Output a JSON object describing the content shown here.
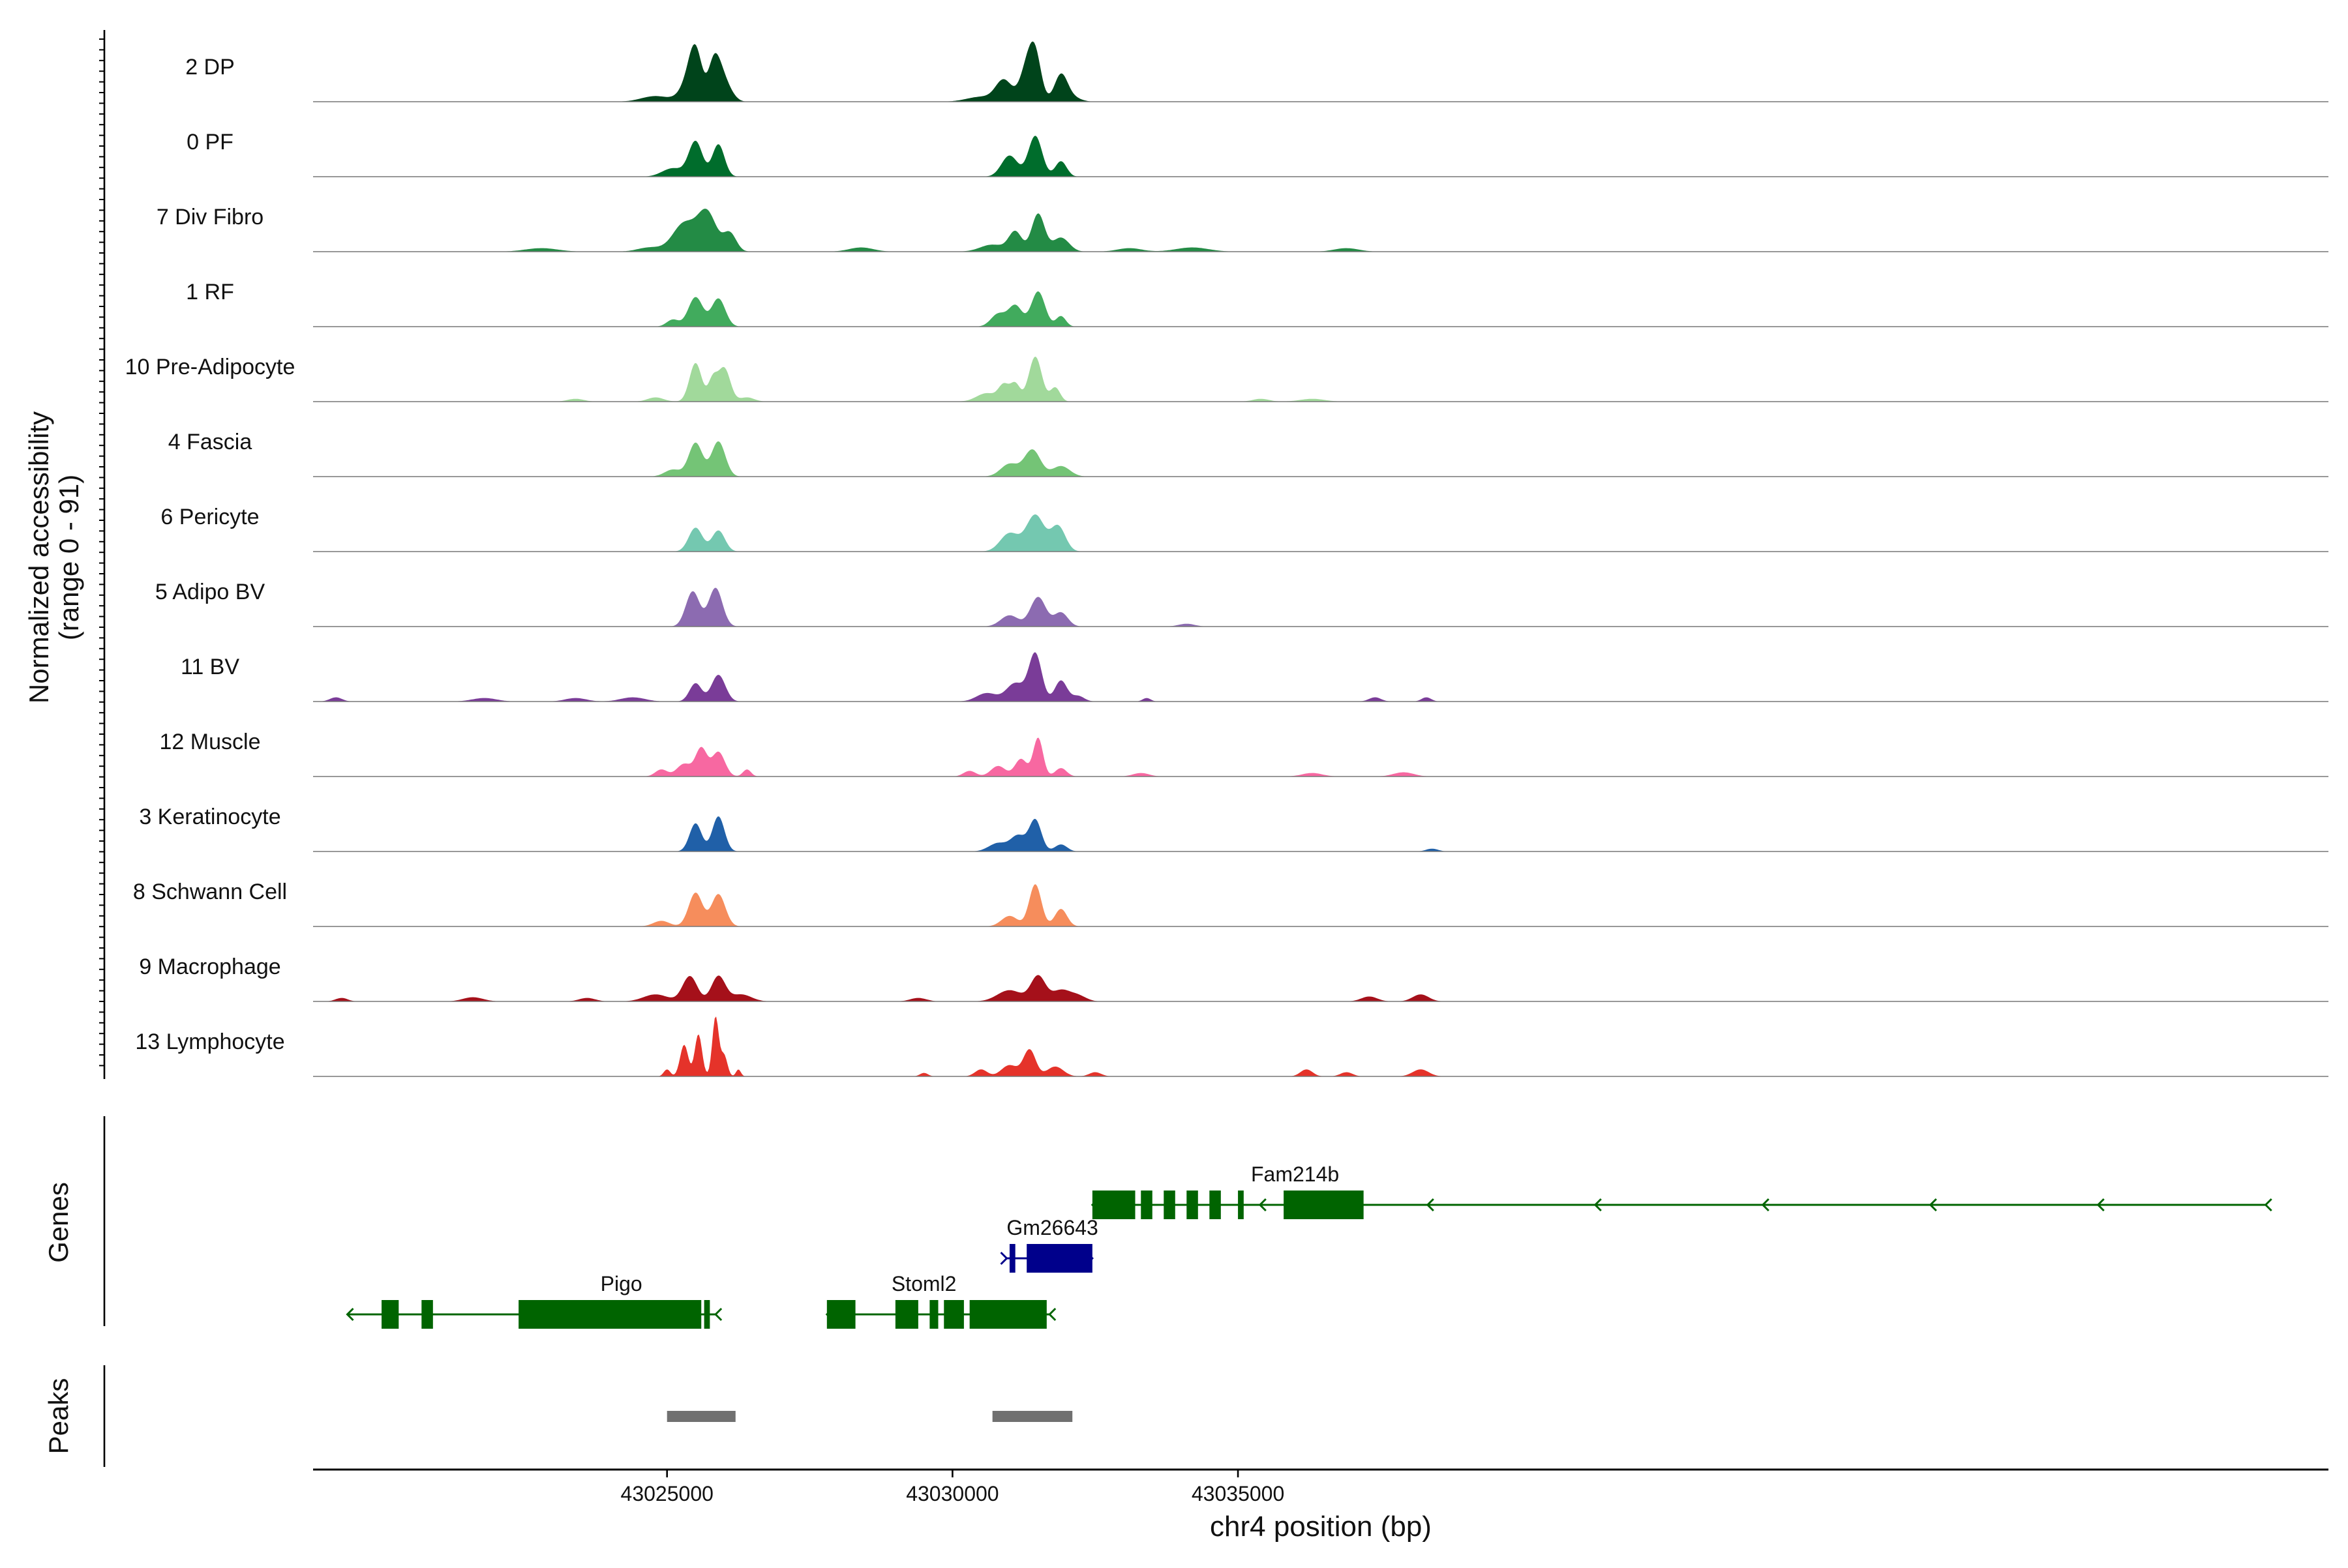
{
  "chart_data": {
    "type": "area",
    "title": "",
    "ylabel_line1": "Normalized accessibility",
    "ylabel_line2": "(range 0 - 91)",
    "ylim": [
      0,
      91
    ],
    "xlabel": "chr4 position (bp)",
    "xlim": [
      43018800,
      43054100
    ],
    "x_ticks": [
      {
        "value": 43025000,
        "label": "43025000"
      },
      {
        "value": 43030000,
        "label": "43030000"
      },
      {
        "value": 43035000,
        "label": "43035000"
      }
    ],
    "genes_label": "Genes",
    "peaks_label": "Peaks",
    "tracks": [
      {
        "name": "2 DP",
        "color": "#00441b",
        "peaks": [
          [
            43024800,
            0.08,
            350
          ],
          [
            43025400,
            0.28,
            220
          ],
          [
            43025500,
            0.58,
            160
          ],
          [
            43025800,
            0.26,
            120
          ],
          [
            43025900,
            0.5,
            170
          ],
          [
            43026100,
            0.1,
            150
          ],
          [
            43030500,
            0.07,
            350
          ],
          [
            43030900,
            0.3,
            200
          ],
          [
            43031300,
            0.45,
            170
          ],
          [
            43031450,
            0.6,
            150
          ],
          [
            43031900,
            0.38,
            160
          ],
          [
            43032100,
            0.06,
            200
          ]
        ]
      },
      {
        "name": "0 PF",
        "color": "#006d2c",
        "peaks": [
          [
            43025100,
            0.12,
            260
          ],
          [
            43025500,
            0.5,
            170
          ],
          [
            43025900,
            0.46,
            150
          ],
          [
            43031000,
            0.3,
            200
          ],
          [
            43031450,
            0.58,
            170
          ],
          [
            43031900,
            0.22,
            140
          ]
        ]
      },
      {
        "name": "7 Div Fibro",
        "color": "#238b45",
        "peaks": [
          [
            43022800,
            0.05,
            400
          ],
          [
            43024700,
            0.06,
            300
          ],
          [
            43025300,
            0.4,
            280
          ],
          [
            43025700,
            0.55,
            230
          ],
          [
            43026100,
            0.26,
            160
          ],
          [
            43028400,
            0.06,
            300
          ],
          [
            43030700,
            0.1,
            300
          ],
          [
            43031100,
            0.28,
            160
          ],
          [
            43031500,
            0.54,
            160
          ],
          [
            43031900,
            0.2,
            200
          ],
          [
            43033100,
            0.05,
            300
          ],
          [
            43034200,
            0.06,
            400
          ],
          [
            43036900,
            0.05,
            300
          ]
        ]
      },
      {
        "name": "1 RF",
        "color": "#41ab5d",
        "peaks": [
          [
            43025100,
            0.1,
            150
          ],
          [
            43025500,
            0.42,
            180
          ],
          [
            43025900,
            0.4,
            170
          ],
          [
            43030800,
            0.18,
            180
          ],
          [
            43031100,
            0.3,
            170
          ],
          [
            43031500,
            0.5,
            170
          ],
          [
            43031900,
            0.15,
            120
          ]
        ]
      },
      {
        "name": "10 Pre-Adipocyte",
        "color": "#a1d99b",
        "peaks": [
          [
            43023400,
            0.04,
            200
          ],
          [
            43024800,
            0.06,
            200
          ],
          [
            43025500,
            0.55,
            150
          ],
          [
            43025800,
            0.3,
            110
          ],
          [
            43026000,
            0.48,
            150
          ],
          [
            43026400,
            0.06,
            180
          ],
          [
            43030600,
            0.12,
            250
          ],
          [
            43030900,
            0.22,
            130
          ],
          [
            43031100,
            0.25,
            120
          ],
          [
            43031450,
            0.64,
            160
          ],
          [
            43031800,
            0.2,
            120
          ],
          [
            43035400,
            0.04,
            200
          ],
          [
            43036300,
            0.04,
            300
          ]
        ]
      },
      {
        "name": "4 Fascia",
        "color": "#74c476",
        "peaks": [
          [
            43025100,
            0.1,
            200
          ],
          [
            43025500,
            0.48,
            170
          ],
          [
            43025900,
            0.5,
            170
          ],
          [
            43031000,
            0.18,
            220
          ],
          [
            43031400,
            0.38,
            200
          ],
          [
            43031900,
            0.15,
            220
          ]
        ]
      },
      {
        "name": "6 Pericyte",
        "color": "#74c8b0",
        "peaks": [
          [
            43025500,
            0.34,
            170
          ],
          [
            43025900,
            0.3,
            160
          ],
          [
            43031000,
            0.26,
            230
          ],
          [
            43031450,
            0.52,
            220
          ],
          [
            43031850,
            0.36,
            180
          ]
        ]
      },
      {
        "name": "5 Adipo BV",
        "color": "#8c6bb1",
        "peaks": [
          [
            43025450,
            0.5,
            170
          ],
          [
            43025850,
            0.55,
            170
          ],
          [
            43031000,
            0.16,
            220
          ],
          [
            43031500,
            0.42,
            190
          ],
          [
            43031900,
            0.2,
            170
          ],
          [
            43034100,
            0.04,
            200
          ]
        ]
      },
      {
        "name": "11 BV",
        "color": "#7a3c98",
        "peaks": [
          [
            43019200,
            0.06,
            150
          ],
          [
            43021800,
            0.05,
            300
          ],
          [
            43023400,
            0.05,
            260
          ],
          [
            43024400,
            0.06,
            300
          ],
          [
            43025500,
            0.26,
            150
          ],
          [
            43025900,
            0.38,
            170
          ],
          [
            43030600,
            0.12,
            250
          ],
          [
            43031100,
            0.26,
            220
          ],
          [
            43031450,
            0.68,
            160
          ],
          [
            43031900,
            0.3,
            150
          ],
          [
            43032200,
            0.08,
            150
          ],
          [
            43033400,
            0.05,
            100
          ],
          [
            43037400,
            0.06,
            150
          ],
          [
            43038300,
            0.06,
            120
          ]
        ]
      },
      {
        "name": "12 Muscle",
        "color": "#f768a1",
        "peaks": [
          [
            43024900,
            0.1,
            150
          ],
          [
            43025300,
            0.18,
            180
          ],
          [
            43025600,
            0.4,
            140
          ],
          [
            43025900,
            0.35,
            160
          ],
          [
            43026400,
            0.1,
            100
          ],
          [
            43030300,
            0.08,
            150
          ],
          [
            43030800,
            0.15,
            180
          ],
          [
            43031200,
            0.25,
            150
          ],
          [
            43031500,
            0.55,
            120
          ],
          [
            43031900,
            0.12,
            140
          ],
          [
            43033300,
            0.05,
            200
          ],
          [
            43036300,
            0.05,
            250
          ],
          [
            43037900,
            0.06,
            250
          ]
        ]
      },
      {
        "name": "3 Keratinocyte",
        "color": "#2060a8",
        "peaks": [
          [
            43025500,
            0.4,
            150
          ],
          [
            43025900,
            0.5,
            150
          ],
          [
            43030800,
            0.12,
            230
          ],
          [
            43031150,
            0.22,
            180
          ],
          [
            43031450,
            0.45,
            150
          ],
          [
            43031900,
            0.1,
            150
          ],
          [
            43038400,
            0.04,
            150
          ]
        ]
      },
      {
        "name": "8 Schwann Cell",
        "color": "#f68d5c",
        "peaks": [
          [
            43024900,
            0.08,
            200
          ],
          [
            43025500,
            0.48,
            170
          ],
          [
            43025900,
            0.46,
            170
          ],
          [
            43031000,
            0.15,
            200
          ],
          [
            43031450,
            0.6,
            150
          ],
          [
            43031900,
            0.25,
            150
          ]
        ]
      },
      {
        "name": "9 Macrophage",
        "color": "#a5101a",
        "peaks": [
          [
            43019300,
            0.05,
            150
          ],
          [
            43021600,
            0.06,
            250
          ],
          [
            43023600,
            0.05,
            200
          ],
          [
            43024800,
            0.1,
            300
          ],
          [
            43025400,
            0.36,
            180
          ],
          [
            43025900,
            0.36,
            170
          ],
          [
            43026300,
            0.1,
            250
          ],
          [
            43029400,
            0.05,
            200
          ],
          [
            43031000,
            0.16,
            300
          ],
          [
            43031500,
            0.36,
            180
          ],
          [
            43031900,
            0.16,
            220
          ],
          [
            43032200,
            0.08,
            200
          ],
          [
            43037300,
            0.07,
            200
          ],
          [
            43038200,
            0.1,
            200
          ]
        ]
      },
      {
        "name": "13 Lymphocyte",
        "color": "#e5332a",
        "peaks": [
          [
            43025000,
            0.1,
            80
          ],
          [
            43025300,
            0.45,
            100
          ],
          [
            43025550,
            0.6,
            90
          ],
          [
            43025850,
            0.85,
            80
          ],
          [
            43026000,
            0.3,
            80
          ],
          [
            43026250,
            0.1,
            60
          ],
          [
            43029500,
            0.05,
            100
          ],
          [
            43030500,
            0.1,
            150
          ],
          [
            43031000,
            0.16,
            200
          ],
          [
            43031350,
            0.38,
            150
          ],
          [
            43031800,
            0.14,
            200
          ],
          [
            43032500,
            0.06,
            150
          ],
          [
            43036200,
            0.1,
            150
          ],
          [
            43036900,
            0.06,
            150
          ],
          [
            43038200,
            0.1,
            200
          ]
        ]
      }
    ],
    "genes": [
      {
        "name": "Pigo",
        "strand": "-",
        "color": "#006400",
        "row": 2,
        "start": 43019400,
        "end": 43025850,
        "label_at": 43024200,
        "exons": [
          [
            43020000,
            43020300
          ],
          [
            43020700,
            43020900
          ],
          [
            43022400,
            43025600
          ],
          [
            43025650,
            43025750
          ]
        ]
      },
      {
        "name": "Stoml2",
        "strand": "-",
        "color": "#006400",
        "row": 2,
        "start": 43027800,
        "end": 43031700,
        "label_at": 43029500,
        "exons": [
          [
            43027800,
            43028300
          ],
          [
            43029000,
            43029400
          ],
          [
            43029600,
            43029750
          ],
          [
            43029850,
            43030200
          ],
          [
            43030300,
            43031650
          ]
        ]
      },
      {
        "name": "Gm26643",
        "strand": "+",
        "color": "#00008b",
        "row": 1,
        "start": 43030950,
        "end": 43032450,
        "label_at": 43031750,
        "exons": [
          [
            43031000,
            43031100
          ],
          [
            43031300,
            43032450
          ]
        ]
      },
      {
        "name": "Fam214b",
        "strand": "-",
        "color": "#006400",
        "row": 0,
        "start": 43032450,
        "end": 43053000,
        "label_at": 43036000,
        "exons": [
          [
            43032450,
            43033200
          ],
          [
            43033300,
            43033500
          ],
          [
            43033700,
            43033900
          ],
          [
            43034100,
            43034300
          ],
          [
            43034500,
            43034700
          ],
          [
            43035000,
            43035100
          ],
          [
            43035800,
            43037200
          ]
        ]
      }
    ],
    "peak_regions": [
      [
        43025000,
        43026200
      ],
      [
        43030700,
        43032100
      ]
    ]
  }
}
